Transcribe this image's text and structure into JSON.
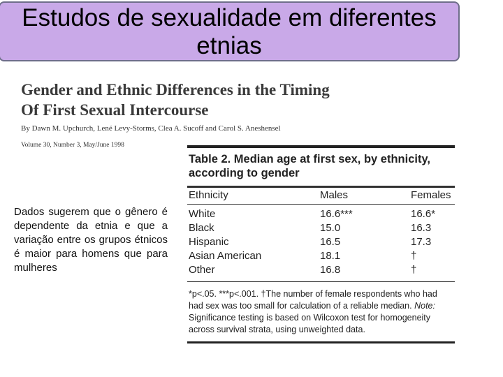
{
  "header": {
    "title": "Estudos de sexualidade em diferentes etnias"
  },
  "article": {
    "title_lines": [
      "Gender and Ethnic Differences in the Timing",
      "Of First Sexual Intercourse"
    ],
    "authors": "By Dawn M. Upchurch, Lené Levy-Storms, Clea A. Sucoff and Carol S. Aneshensel",
    "citation": "Volume 30, Number 3, May/June 1998"
  },
  "summary": "Dados sugerem que o gênero é dependente da etnia e que a variação entre os grupos étnicos é maior para homens que para mulheres",
  "table": {
    "title": "Table 2. Median age at first sex, by ethnicity, according to gender",
    "columns": [
      "Ethnicity",
      "Males",
      "Females"
    ],
    "rows": [
      [
        "White",
        "16.6***",
        "16.6*"
      ],
      [
        "Black",
        "15.0",
        "16.3"
      ],
      [
        "Hispanic",
        "16.5",
        "17.3"
      ],
      [
        "Asian American",
        "18.1",
        "†"
      ],
      [
        "Other",
        "16.8",
        "†"
      ]
    ],
    "footnote": "*p<.05. ***p<.001. †The number of female respondents who had had sex was too small for calculation of a reliable median.",
    "note_label": "Note:",
    "note": "Significance testing is based on Wilcoxon test for homogeneity across survival strata, using unweighted data."
  }
}
